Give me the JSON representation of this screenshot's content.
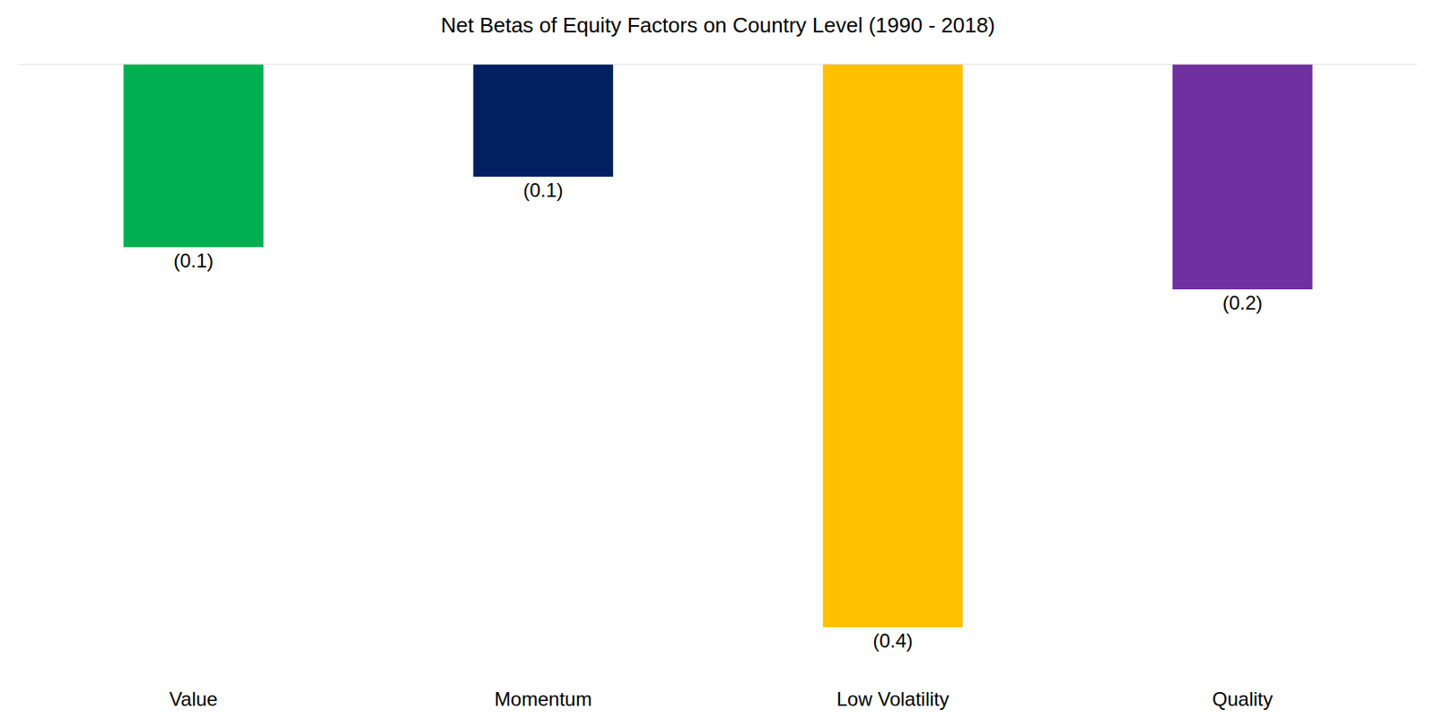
{
  "chart_data": {
    "type": "bar",
    "title": "Net Betas of Equity Factors on Country Level (1990 - 2018)",
    "categories": [
      "Value",
      "Momentum",
      "Low Volatility",
      "Quality"
    ],
    "values": [
      -0.13,
      -0.08,
      -0.4,
      -0.16
    ],
    "value_labels": [
      "(0.1)",
      "(0.1)",
      "(0.4)",
      "(0.2)"
    ],
    "colors": [
      "#00b050",
      "#002060",
      "#ffc000",
      "#7030a0"
    ],
    "ylim": [
      -0.4,
      0
    ],
    "yticks": [
      -0.4,
      0
    ],
    "data_labels": true,
    "tick_labels": "x",
    "grid": false
  }
}
